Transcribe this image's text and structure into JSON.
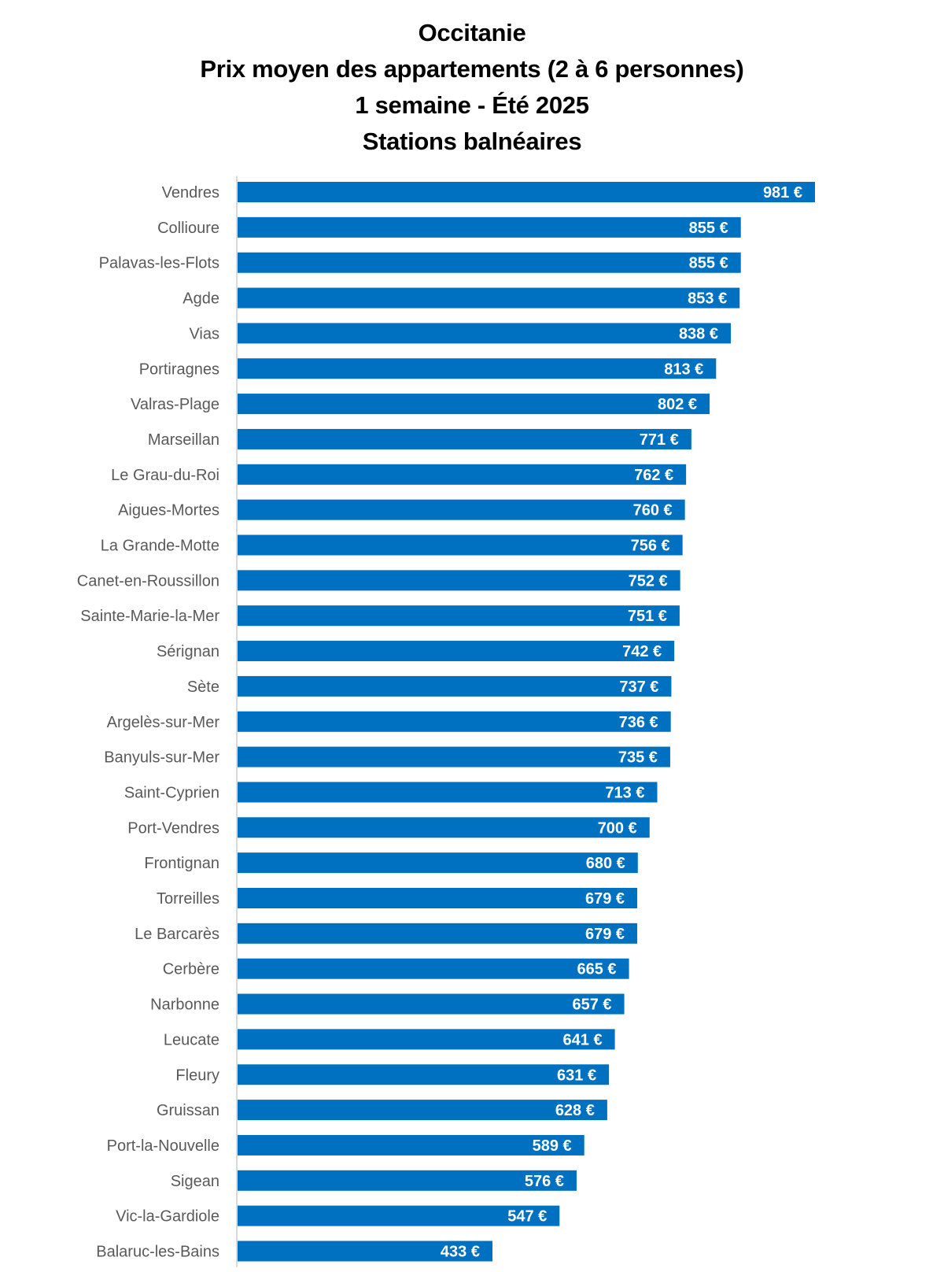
{
  "chart_data": {
    "type": "bar",
    "orientation": "horizontal",
    "title": [
      "Occitanie",
      "Prix moyen des appartements (2 à 6 personnes)",
      "1 semaine - Été 2025",
      "Stations balnéaires"
    ],
    "xlabel": "",
    "ylabel": "",
    "value_suffix": " €",
    "bar_color": "#0070C0",
    "grid": false,
    "legend": "none",
    "xlim": [
      0,
      981
    ],
    "categories": [
      "Vendres",
      "Collioure",
      "Palavas-les-Flots",
      "Agde",
      "Vias",
      "Portiragnes",
      "Valras-Plage",
      "Marseillan",
      "Le Grau-du-Roi",
      "Aigues-Mortes",
      "La Grande-Motte",
      "Canet-en-Roussillon",
      "Sainte-Marie-la-Mer",
      "Sérignan",
      "Sète",
      "Argelès-sur-Mer",
      "Banyuls-sur-Mer",
      "Saint-Cyprien",
      "Port-Vendres",
      "Frontignan",
      "Torreilles",
      "Le Barcarès",
      "Cerbère",
      "Narbonne",
      "Leucate",
      "Fleury",
      "Gruissan",
      "Port-la-Nouvelle",
      "Sigean",
      "Vic-la-Gardiole",
      "Balaruc-les-Bains"
    ],
    "values": [
      981,
      855,
      855,
      853,
      838,
      813,
      802,
      771,
      762,
      760,
      756,
      752,
      751,
      742,
      737,
      736,
      735,
      713,
      700,
      680,
      679,
      679,
      665,
      657,
      641,
      631,
      628,
      589,
      576,
      547,
      433
    ],
    "labels": [
      "981 €",
      "855 €",
      "855 €",
      "853 €",
      "838 €",
      "813 €",
      "802 €",
      "771 €",
      "762 €",
      "760 €",
      "756 €",
      "752 €",
      "751 €",
      "742 €",
      "737 €",
      "736 €",
      "735 €",
      "713 €",
      "700 €",
      "680 €",
      "679 €",
      "679 €",
      "665 €",
      "657 €",
      "641 €",
      "631 €",
      "628 €",
      "589 €",
      "576 €",
      "547 €",
      "433 €"
    ]
  }
}
